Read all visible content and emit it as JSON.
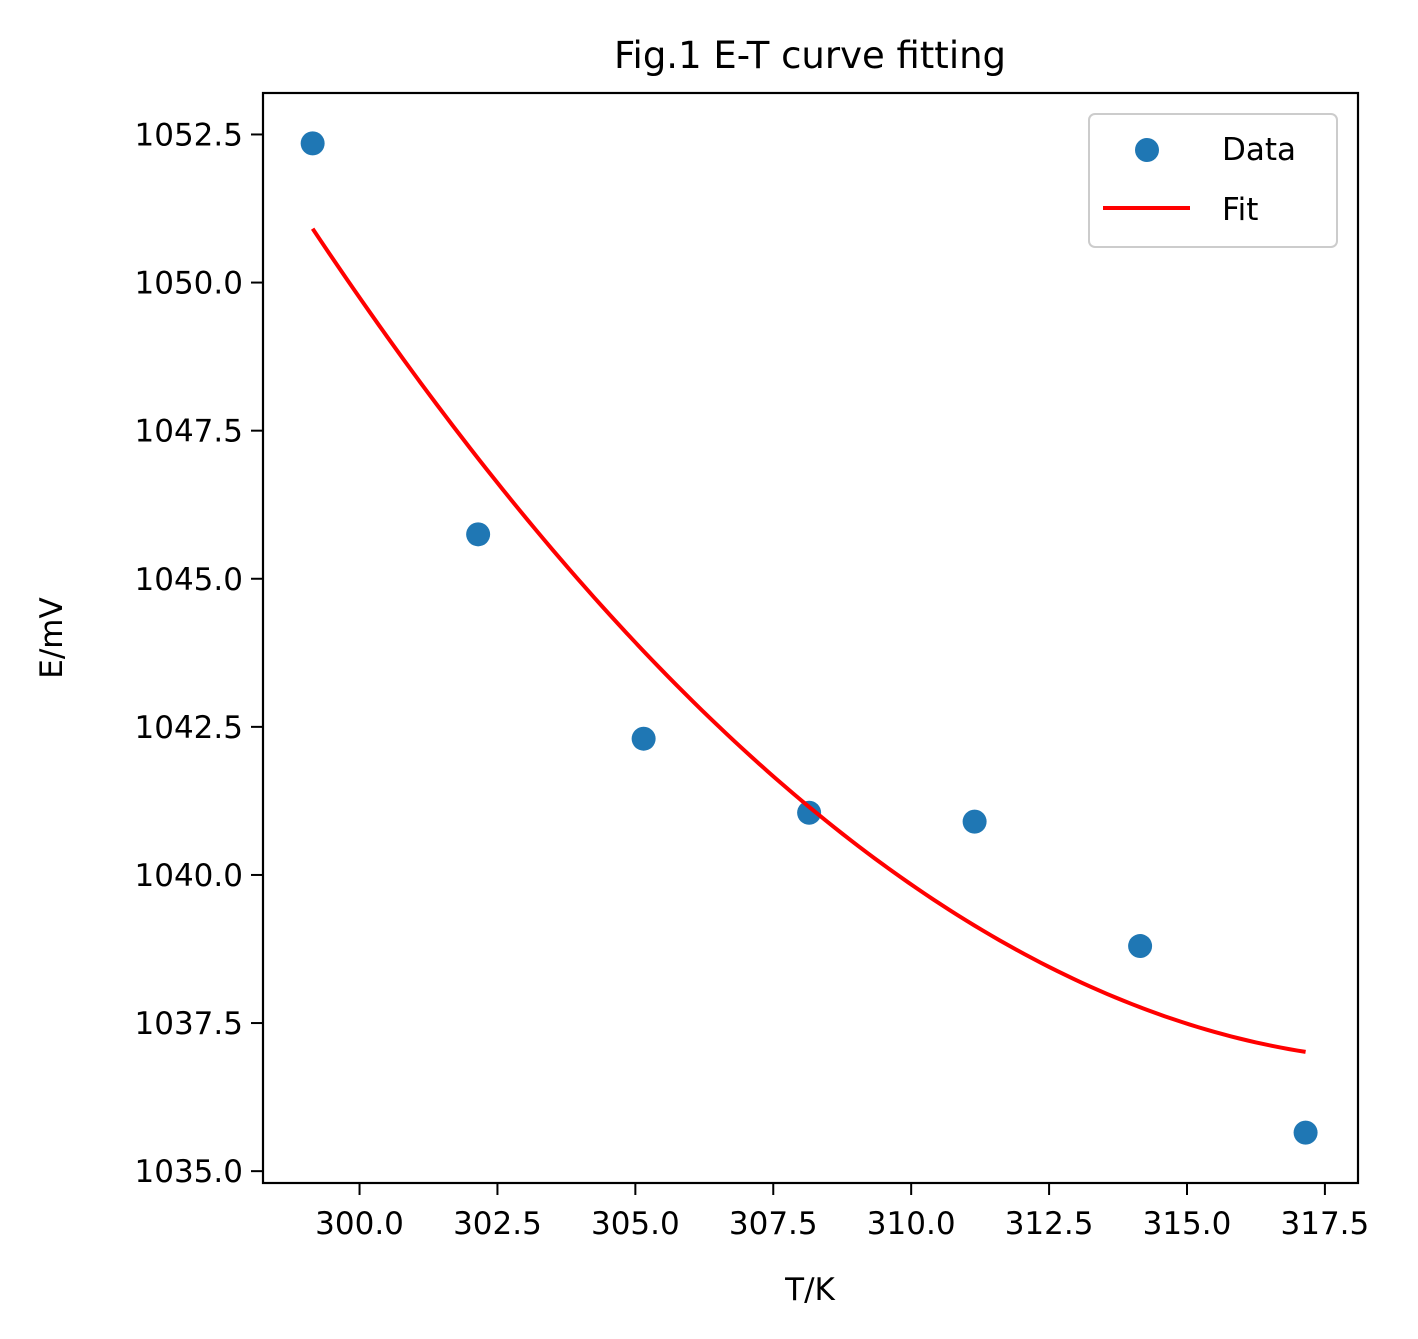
{
  "chart_data": {
    "type": "scatter",
    "title": "Fig.1 E-T curve fitting",
    "xlabel": "T/K",
    "ylabel": "E/mV",
    "xlim": [
      298.25,
      318.1
    ],
    "ylim": [
      1034.8,
      1053.2
    ],
    "xticks": [
      300.0,
      302.5,
      305.0,
      307.5,
      310.0,
      312.5,
      315.0,
      317.5
    ],
    "xtick_labels": [
      "300.0",
      "302.5",
      "305.0",
      "307.5",
      "310.0",
      "312.5",
      "315.0",
      "317.5"
    ],
    "yticks": [
      1035.0,
      1037.5,
      1040.0,
      1042.5,
      1045.0,
      1047.5,
      1050.0,
      1052.5
    ],
    "ytick_labels": [
      "1035.0",
      "1037.5",
      "1040.0",
      "1042.5",
      "1045.0",
      "1047.5",
      "1050.0",
      "1052.5"
    ],
    "legend_position": "top-right",
    "grid": false,
    "series": [
      {
        "name": "Data",
        "kind": "scatter",
        "color": "#1f77b4",
        "x": [
          299.15,
          302.15,
          305.15,
          308.15,
          311.15,
          314.15,
          317.15
        ],
        "y": [
          1052.35,
          1045.75,
          1042.3,
          1041.05,
          1040.9,
          1038.8,
          1035.65
        ]
      },
      {
        "name": "Fit",
        "kind": "line",
        "color": "#ff0000",
        "x": [
          299.15,
          302.15,
          305.15,
          308.15,
          311.15,
          314.15,
          317.15
        ],
        "y": [
          1050.98,
          1046.96,
          1043.71,
          1041.14,
          1039.22,
          1037.84,
          1036.94
        ]
      }
    ]
  }
}
